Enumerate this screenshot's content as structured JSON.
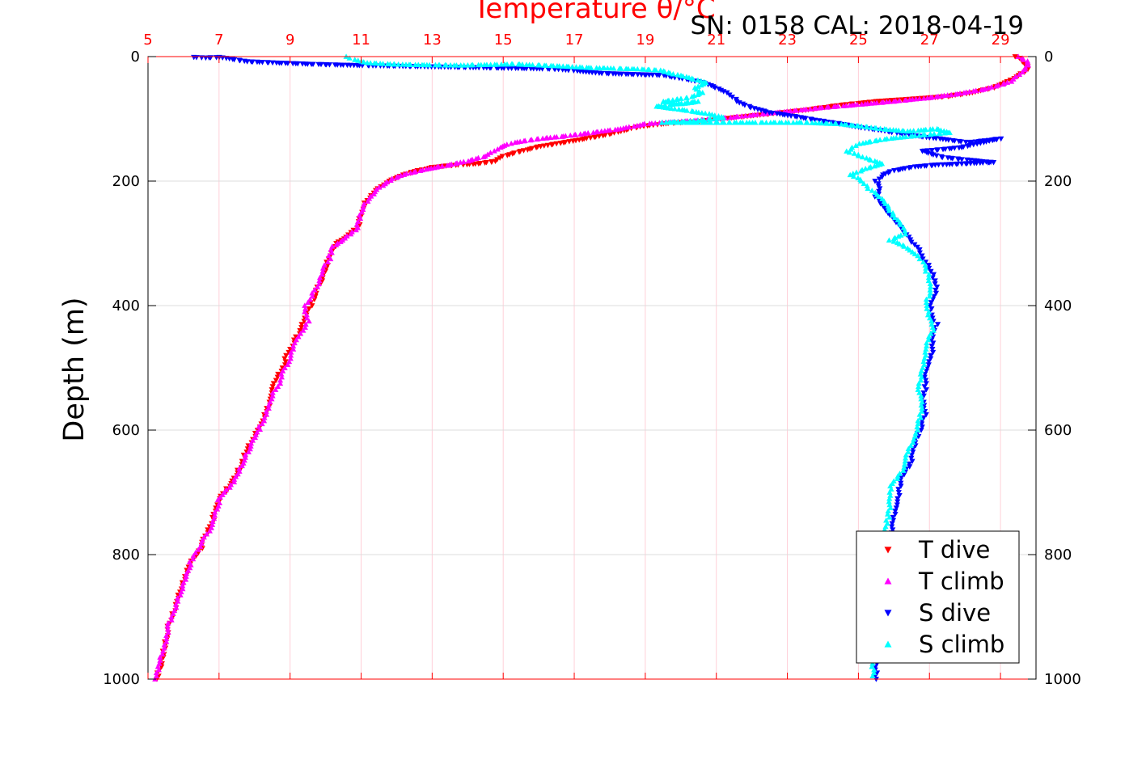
{
  "chart_data": {
    "type": "scatter",
    "title": "Temperature θ/°C",
    "caption": "SN: 0158  CAL: 2018-04-19",
    "ylabel": "Depth (m)",
    "x_axis": {
      "label": "Temperature θ/°C",
      "range": [
        5,
        30
      ],
      "ticks": [
        5,
        7,
        9,
        11,
        13,
        15,
        17,
        19,
        21,
        23,
        25,
        27,
        29
      ],
      "color": "#ff0000",
      "position": "top"
    },
    "y_axis": {
      "range": [
        0,
        1000
      ],
      "reversed": true,
      "ticks": [
        0,
        200,
        400,
        600,
        800,
        1000
      ],
      "position": "both"
    },
    "grid": true,
    "legend": {
      "placement": "bottom-right"
    },
    "series": [
      {
        "name": "T dive",
        "color": "#ff0000",
        "marker": "triangle-down",
        "points": [
          [
            29.4,
            0
          ],
          [
            29.6,
            5
          ],
          [
            29.7,
            12
          ],
          [
            29.8,
            20
          ],
          [
            29.5,
            30
          ],
          [
            29.2,
            40
          ],
          [
            28.8,
            50
          ],
          [
            28.2,
            58
          ],
          [
            27.5,
            64
          ],
          [
            26.5,
            68
          ],
          [
            25.5,
            72
          ],
          [
            24.5,
            78
          ],
          [
            23.5,
            86
          ],
          [
            22.5,
            92
          ],
          [
            21.5,
            98
          ],
          [
            20.5,
            104
          ],
          [
            19.5,
            108
          ],
          [
            18.8,
            113
          ],
          [
            18.3,
            120
          ],
          [
            17.8,
            127
          ],
          [
            17.2,
            133
          ],
          [
            16.6,
            139
          ],
          [
            16.0,
            145
          ],
          [
            15.5,
            152
          ],
          [
            15.0,
            160
          ],
          [
            14.8,
            168
          ],
          [
            14.3,
            172
          ],
          [
            13.5,
            175
          ],
          [
            13.0,
            178
          ],
          [
            12.6,
            183
          ],
          [
            12.2,
            190
          ],
          [
            11.8,
            200
          ],
          [
            11.4,
            215
          ],
          [
            11.1,
            235
          ],
          [
            11.0,
            255
          ],
          [
            10.9,
            275
          ],
          [
            10.6,
            290
          ],
          [
            10.3,
            300
          ],
          [
            10.1,
            320
          ],
          [
            10.0,
            340
          ],
          [
            9.9,
            360
          ],
          [
            9.7,
            380
          ],
          [
            9.6,
            400
          ],
          [
            9.4,
            420
          ],
          [
            9.3,
            440
          ],
          [
            9.1,
            460
          ],
          [
            8.9,
            480
          ],
          [
            8.8,
            500
          ],
          [
            8.6,
            520
          ],
          [
            8.5,
            540
          ],
          [
            8.4,
            560
          ],
          [
            8.2,
            590
          ],
          [
            8.0,
            610
          ],
          [
            7.8,
            630
          ],
          [
            7.6,
            660
          ],
          [
            7.3,
            690
          ],
          [
            7.0,
            710
          ],
          [
            6.9,
            730
          ],
          [
            6.8,
            750
          ],
          [
            6.6,
            770
          ],
          [
            6.5,
            790
          ],
          [
            6.2,
            810
          ],
          [
            6.1,
            830
          ],
          [
            5.9,
            860
          ],
          [
            5.8,
            880
          ],
          [
            5.6,
            910
          ],
          [
            5.5,
            940
          ],
          [
            5.4,
            970
          ],
          [
            5.25,
            1000
          ]
        ]
      },
      {
        "name": "T climb",
        "color": "#ff00ff",
        "marker": "triangle-up",
        "points": [
          [
            29.5,
            0
          ],
          [
            29.8,
            10
          ],
          [
            29.6,
            25
          ],
          [
            29.3,
            40
          ],
          [
            28.6,
            52
          ],
          [
            27.8,
            60
          ],
          [
            27.0,
            66
          ],
          [
            26.0,
            72
          ],
          [
            25.0,
            77
          ],
          [
            24.0,
            82
          ],
          [
            23.0,
            88
          ],
          [
            22.0,
            94
          ],
          [
            21.0,
            100
          ],
          [
            20.0,
            104
          ],
          [
            19.0,
            108
          ],
          [
            18.3,
            116
          ],
          [
            17.5,
            122
          ],
          [
            16.7,
            128
          ],
          [
            16.0,
            132
          ],
          [
            15.3,
            138
          ],
          [
            14.9,
            146
          ],
          [
            14.5,
            160
          ],
          [
            14.0,
            168
          ],
          [
            13.3,
            176
          ],
          [
            12.8,
            181
          ],
          [
            12.3,
            188
          ],
          [
            11.9,
            196
          ],
          [
            11.5,
            210
          ],
          [
            11.2,
            228
          ],
          [
            11.0,
            250
          ],
          [
            10.9,
            275
          ],
          [
            10.5,
            295
          ],
          [
            10.2,
            305
          ],
          [
            10.1,
            325
          ],
          [
            9.9,
            345
          ],
          [
            9.8,
            365
          ],
          [
            9.6,
            385
          ],
          [
            9.4,
            405
          ],
          [
            9.5,
            425
          ],
          [
            9.3,
            445
          ],
          [
            9.1,
            465
          ],
          [
            9.0,
            485
          ],
          [
            8.8,
            505
          ],
          [
            8.7,
            525
          ],
          [
            8.5,
            545
          ],
          [
            8.4,
            565
          ],
          [
            8.2,
            590
          ],
          [
            8.0,
            612
          ],
          [
            7.8,
            635
          ],
          [
            7.6,
            662
          ],
          [
            7.3,
            692
          ],
          [
            7.0,
            712
          ],
          [
            6.9,
            732
          ],
          [
            6.8,
            752
          ],
          [
            6.6,
            772
          ],
          [
            6.4,
            792
          ],
          [
            6.2,
            812
          ],
          [
            6.1,
            835
          ],
          [
            5.9,
            860
          ],
          [
            5.8,
            885
          ],
          [
            5.6,
            910
          ],
          [
            5.5,
            940
          ],
          [
            5.35,
            970
          ],
          [
            5.2,
            1000
          ]
        ]
      },
      {
        "name": "S dive",
        "color": "#0000ff",
        "marker": "triangle-down",
        "points": [
          [
            6.3,
            1
          ],
          [
            6.6,
            2
          ],
          [
            7.0,
            1
          ],
          [
            7.8,
            8
          ],
          [
            8.6,
            10
          ],
          [
            9.5,
            12
          ],
          [
            10.8,
            14
          ],
          [
            16.5,
            20
          ],
          [
            17.8,
            27
          ],
          [
            19.5,
            30
          ],
          [
            20.5,
            40
          ],
          [
            20.9,
            48
          ],
          [
            21.3,
            58
          ],
          [
            21.6,
            72
          ],
          [
            22.0,
            82
          ],
          [
            22.5,
            90
          ],
          [
            23.2,
            96
          ],
          [
            23.8,
            102
          ],
          [
            24.5,
            108
          ],
          [
            25.2,
            115
          ],
          [
            25.8,
            120
          ],
          [
            26.4,
            126
          ],
          [
            27.3,
            132
          ],
          [
            28.1,
            138
          ],
          [
            29.0,
            132
          ],
          [
            27.9,
            146
          ],
          [
            26.8,
            152
          ],
          [
            27.4,
            162
          ],
          [
            28.4,
            168
          ],
          [
            28.8,
            170
          ],
          [
            27.2,
            174
          ],
          [
            26.6,
            177
          ],
          [
            26.0,
            183
          ],
          [
            25.7,
            190
          ],
          [
            25.5,
            200
          ],
          [
            25.6,
            212
          ],
          [
            25.5,
            225
          ],
          [
            25.7,
            240
          ],
          [
            25.9,
            255
          ],
          [
            26.1,
            270
          ],
          [
            26.4,
            290
          ],
          [
            26.7,
            310
          ],
          [
            26.9,
            330
          ],
          [
            27.1,
            350
          ],
          [
            27.2,
            370
          ],
          [
            27.1,
            390
          ],
          [
            27.0,
            410
          ],
          [
            27.2,
            430
          ],
          [
            27.1,
            450
          ],
          [
            27.1,
            470
          ],
          [
            27.0,
            490
          ],
          [
            26.9,
            510
          ],
          [
            26.9,
            530
          ],
          [
            26.8,
            550
          ],
          [
            26.9,
            570
          ],
          [
            26.8,
            590
          ],
          [
            26.6,
            620
          ],
          [
            26.5,
            650
          ],
          [
            26.2,
            680
          ],
          [
            26.1,
            710
          ],
          [
            26.0,
            740
          ],
          [
            25.9,
            770
          ],
          [
            25.8,
            800
          ],
          [
            25.8,
            830
          ],
          [
            25.7,
            860
          ],
          [
            25.6,
            890
          ],
          [
            25.6,
            920
          ],
          [
            25.5,
            950
          ],
          [
            25.5,
            980
          ],
          [
            25.5,
            1000
          ]
        ]
      },
      {
        "name": "S climb",
        "color": "#00ffff",
        "marker": "triangle-up",
        "points": [
          [
            10.6,
            0
          ],
          [
            10.8,
            5
          ],
          [
            11.2,
            10
          ],
          [
            11.8,
            12
          ],
          [
            12.4,
            13
          ],
          [
            13.8,
            14
          ],
          [
            15.3,
            12
          ],
          [
            16.5,
            15
          ],
          [
            17.5,
            18
          ],
          [
            18.8,
            20
          ],
          [
            19.4,
            22
          ],
          [
            19.8,
            28
          ],
          [
            20.3,
            35
          ],
          [
            20.7,
            42
          ],
          [
            20.4,
            50
          ],
          [
            20.6,
            58
          ],
          [
            20.2,
            66
          ],
          [
            19.5,
            72
          ],
          [
            20.0,
            76
          ],
          [
            20.5,
            72
          ],
          [
            19.3,
            80
          ],
          [
            20.1,
            86
          ],
          [
            20.8,
            92
          ],
          [
            21.2,
            98
          ],
          [
            20.3,
            104
          ],
          [
            19.5,
            106
          ],
          [
            23.5,
            106
          ],
          [
            24.4,
            108
          ],
          [
            25.1,
            112
          ],
          [
            25.8,
            117
          ],
          [
            26.4,
            120
          ],
          [
            27.2,
            116
          ],
          [
            27.6,
            122
          ],
          [
            26.8,
            126
          ],
          [
            25.8,
            132
          ],
          [
            25.0,
            140
          ],
          [
            24.7,
            152
          ],
          [
            25.3,
            165
          ],
          [
            25.7,
            172
          ],
          [
            25.2,
            180
          ],
          [
            24.8,
            190
          ],
          [
            25.1,
            200
          ],
          [
            25.3,
            212
          ],
          [
            25.6,
            225
          ],
          [
            25.8,
            240
          ],
          [
            26.0,
            255
          ],
          [
            26.2,
            270
          ],
          [
            26.3,
            285
          ],
          [
            25.9,
            295
          ],
          [
            26.3,
            305
          ],
          [
            26.7,
            320
          ],
          [
            26.9,
            340
          ],
          [
            27.0,
            360
          ],
          [
            27.0,
            380
          ],
          [
            26.9,
            400
          ],
          [
            27.0,
            420
          ],
          [
            27.1,
            440
          ],
          [
            26.9,
            460
          ],
          [
            26.9,
            480
          ],
          [
            26.8,
            500
          ],
          [
            26.7,
            530
          ],
          [
            26.8,
            560
          ],
          [
            26.7,
            590
          ],
          [
            26.5,
            620
          ],
          [
            26.3,
            650
          ],
          [
            26.2,
            670
          ],
          [
            25.9,
            690
          ],
          [
            25.9,
            720
          ],
          [
            25.8,
            750
          ],
          [
            25.7,
            780
          ],
          [
            25.7,
            810
          ],
          [
            25.6,
            840
          ],
          [
            25.6,
            870
          ],
          [
            25.5,
            900
          ],
          [
            25.5,
            940
          ],
          [
            25.4,
            970
          ],
          [
            25.4,
            995
          ]
        ]
      }
    ]
  }
}
